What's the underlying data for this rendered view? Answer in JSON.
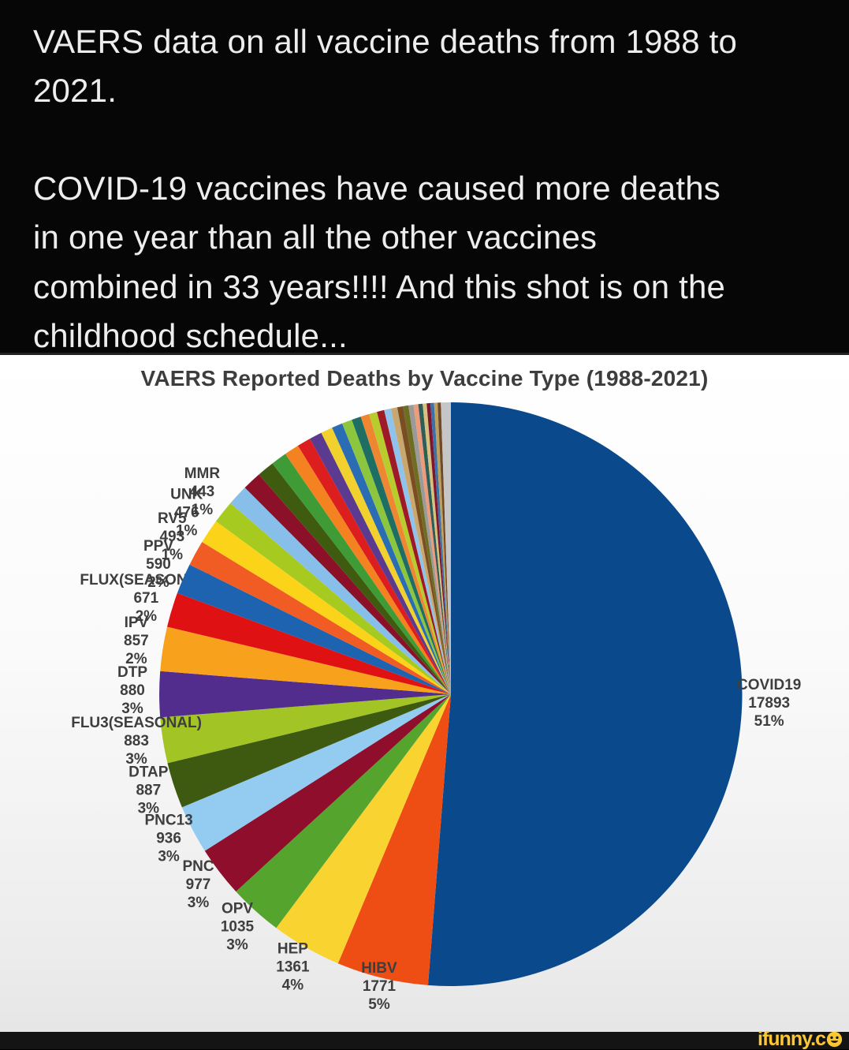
{
  "meme": {
    "paragraph1": [
      "VAERS data on all vaccine deaths from 1988 to",
      "2021."
    ],
    "paragraph2": [
      "COVID-19 vaccines have caused more deaths",
      "in one year than all the other vaccines",
      "combined in 33 years!!!! And this shot is on the",
      "childhood schedule..."
    ]
  },
  "chart": {
    "title": "VAERS Reported Deaths by Vaccine Type (1988-2021)"
  },
  "chart_data": {
    "type": "pie",
    "title": "VAERS Reported Deaths by Vaccine Type (1988-2021)",
    "unit": "reported deaths",
    "layout": {
      "start": "12 o'clock",
      "direction": "clockwise",
      "legend": "none",
      "labels": "outside rim: name / value / percent",
      "grid": false
    },
    "slices": [
      {
        "label": "COVID19",
        "value": 17893,
        "pct": "51%",
        "color": "#0a4a8c"
      },
      {
        "label": "HIBV",
        "value": 1771,
        "pct": "5%",
        "color": "#ee4d14"
      },
      {
        "label": "HEP",
        "value": 1361,
        "pct": "4%",
        "color": "#f9d430"
      },
      {
        "label": "OPV",
        "value": 1035,
        "pct": "3%",
        "color": "#55a42e"
      },
      {
        "label": "PNC",
        "value": 977,
        "pct": "3%",
        "color": "#8e0e2c"
      },
      {
        "label": "PNC13",
        "value": 936,
        "pct": "3%",
        "color": "#94cbf1"
      },
      {
        "label": "DTAP",
        "value": 887,
        "pct": "3%",
        "color": "#3d5a10"
      },
      {
        "label": "FLU3(SEASONAL)",
        "value": 883,
        "pct": "3%",
        "color": "#a2c424"
      },
      {
        "label": "DTP",
        "value": 880,
        "pct": "3%",
        "color": "#522d8e"
      },
      {
        "label": "IPV",
        "value": 857,
        "pct": "2%",
        "color": "#f7a11c"
      },
      {
        "label": "FLUX(SEASONAL)",
        "value": 671,
        "pct": "2%",
        "color": "#e01113"
      },
      {
        "label": "PPV",
        "value": 590,
        "pct": "2%",
        "color": "#1d63b0"
      },
      {
        "label": "RV5",
        "value": 493,
        "pct": "1%",
        "color": "#f15c25"
      },
      {
        "label": "UNK",
        "value": 476,
        "pct": "1%",
        "color": "#fbd41a"
      },
      {
        "label": "MMR",
        "value": 443,
        "pct": "1%",
        "color": "#a6ca1f"
      }
    ],
    "other_unlabeled": {
      "value": 4760,
      "note": "many small unlabeled slices between MMR and 12 o'clock",
      "colors": [
        "#88bfea",
        "#8c1028",
        "#3e5b10",
        "#3f9b35",
        "#f58220",
        "#dd1e1e",
        "#5b3b8f",
        "#f2d12e",
        "#2a6db5",
        "#8cc63f",
        "#1f6e63",
        "#ef8632",
        "#b8cc2e",
        "#9e1a28",
        "#8fc3ec",
        "#c9a870",
        "#7a4e23",
        "#6e6e22",
        "#9a9a9a",
        "#ec9b7b",
        "#2f5d58",
        "#d6c27e",
        "#7e1630",
        "#3c70a8",
        "#bfa05a",
        "#6e4a2a",
        "#c6c6c6"
      ],
      "weights": [
        1.15,
        1.05,
        0.95,
        0.88,
        0.82,
        0.76,
        0.7,
        0.65,
        0.6,
        0.56,
        0.52,
        0.48,
        0.44,
        0.41,
        0.38,
        0.35,
        0.32,
        0.3,
        0.28,
        0.26,
        0.24,
        0.22,
        0.21,
        0.2,
        0.19,
        0.18,
        0.55
      ]
    }
  },
  "footer": {
    "watermark": "ifunny.c"
  }
}
